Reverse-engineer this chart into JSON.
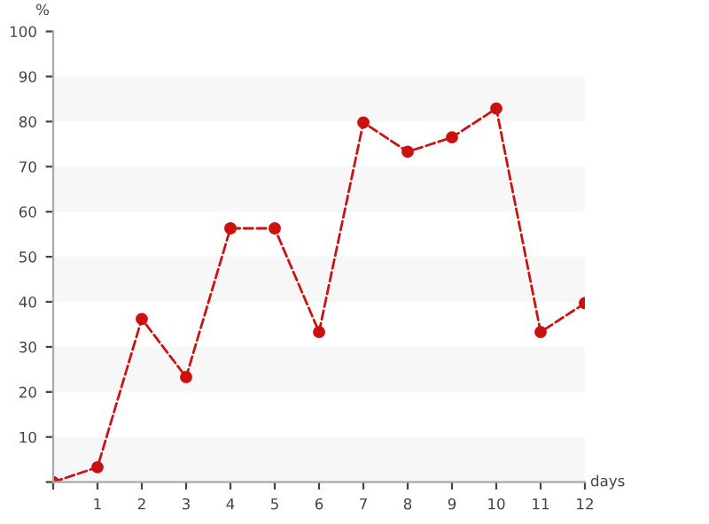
{
  "chart_data": {
    "type": "line",
    "xlabel": "days",
    "ylabel": "%",
    "x": [
      0,
      1,
      2,
      3,
      4,
      5,
      6,
      7,
      8,
      9,
      10,
      11,
      12
    ],
    "series": [
      {
        "color": "#cc1111",
        "values": [
          0,
          3.3,
          36.2,
          23.3,
          56.3,
          56.3,
          33.3,
          79.8,
          73.3,
          76.5,
          82.9,
          33.3,
          39.7
        ]
      }
    ],
    "xlim": [
      0,
      12
    ],
    "ylim": [
      0,
      100
    ],
    "xticks": [
      {
        "value": 0,
        "label": null
      },
      1,
      2,
      3,
      4,
      5,
      6,
      7,
      8,
      9,
      10,
      11,
      12
    ],
    "yticks": [
      {
        "value": 0,
        "label": null
      },
      10,
      20,
      30,
      40,
      50,
      60,
      70,
      80,
      90,
      100
    ],
    "bands": [
      {
        "axis": "y",
        "from": 0,
        "to": 10,
        "color": "#f7f7f7"
      },
      {
        "axis": "y",
        "from": 20,
        "to": 30,
        "color": "#f7f7f7"
      },
      {
        "axis": "y",
        "from": 40,
        "to": 50,
        "color": "#f7f7f7"
      },
      {
        "axis": "y",
        "from": 60,
        "to": 70,
        "color": "#f7f7f7"
      },
      {
        "axis": "y",
        "from": 80,
        "to": 90,
        "color": "#f7f7f7"
      }
    ],
    "grid": false,
    "marker": "circle",
    "line_style": "dashed",
    "legend": false
  }
}
